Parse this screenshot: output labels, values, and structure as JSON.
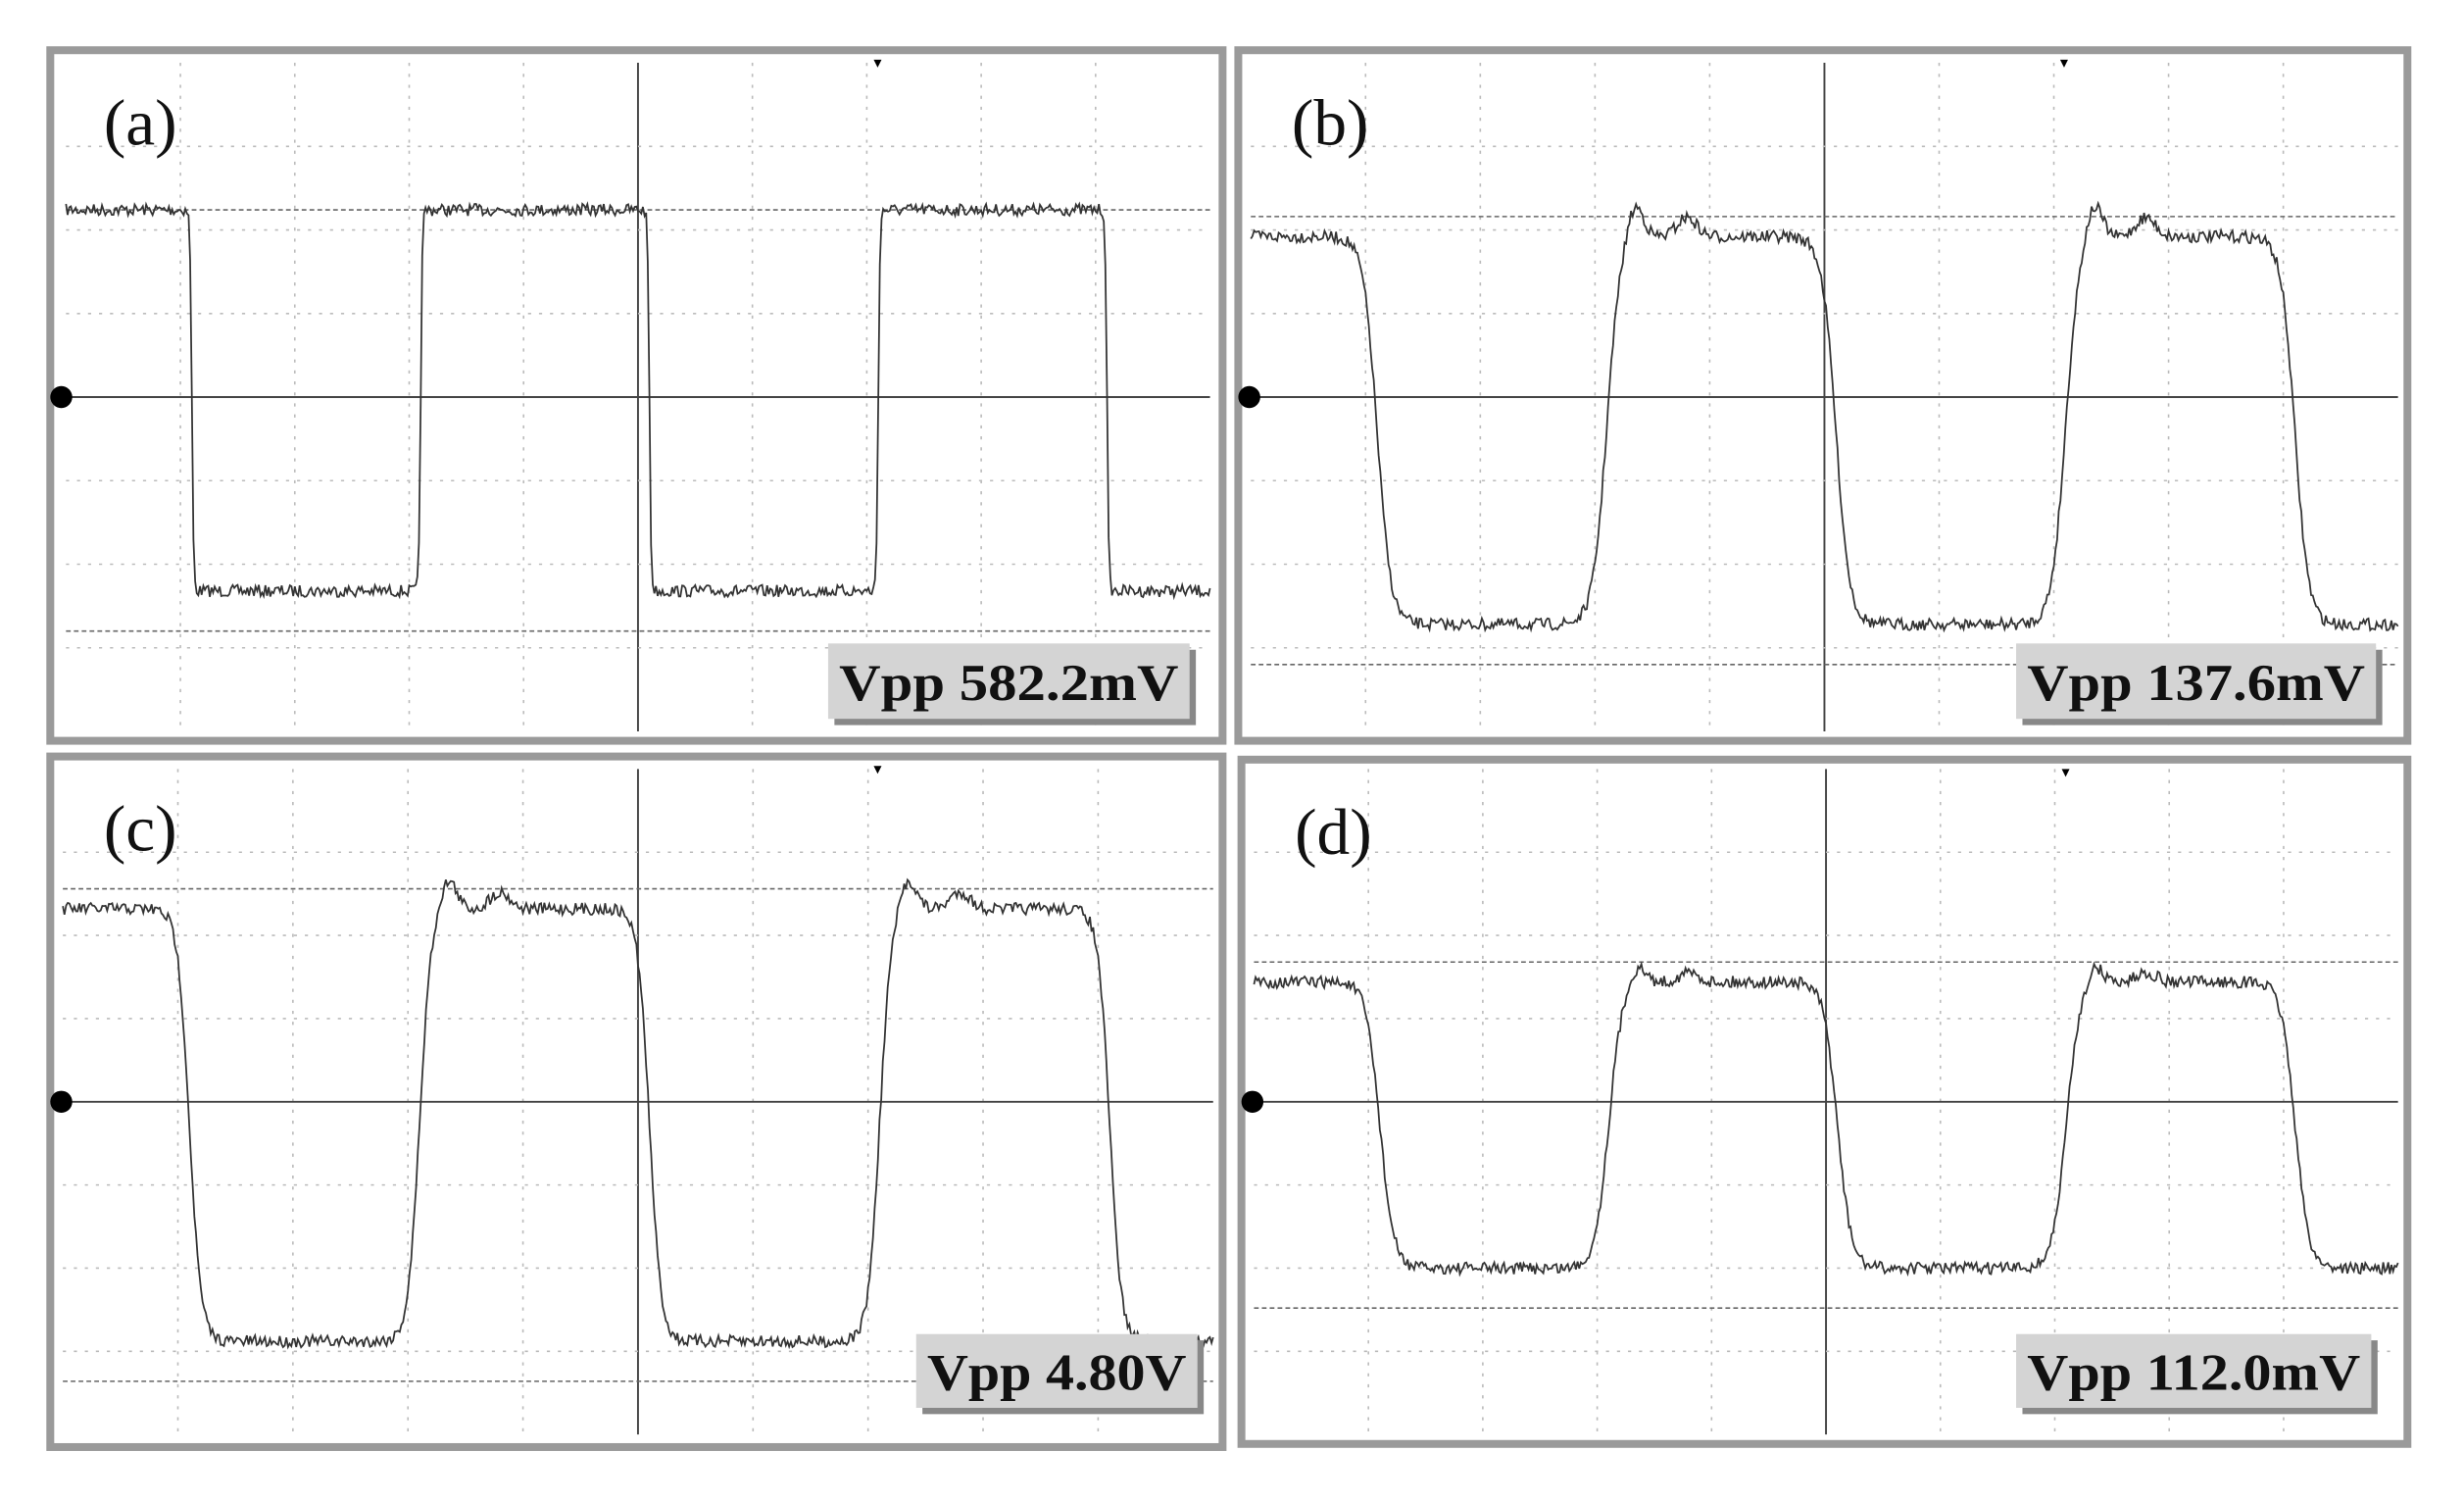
{
  "panels": [
    {
      "label": "(a)",
      "measurement": "Vpp 582.2mV"
    },
    {
      "label": "(b)",
      "measurement": "Vpp 137.6mV"
    },
    {
      "label": "(c)",
      "measurement": "Vpp 4.80V"
    },
    {
      "label": "(d)",
      "measurement": "Vpp 112.0mV"
    }
  ]
}
